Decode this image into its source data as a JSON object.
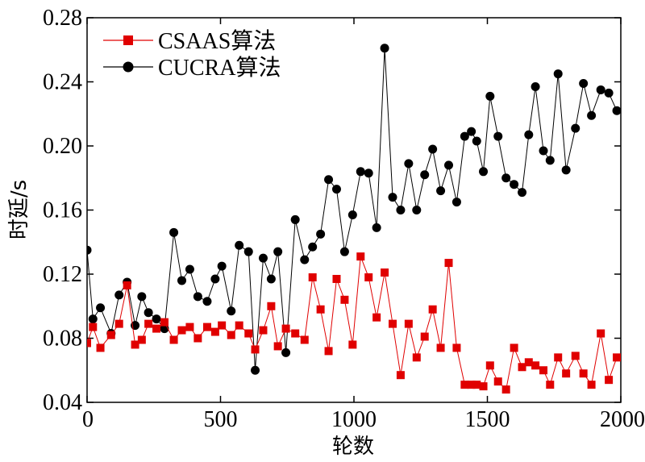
{
  "chart_data": {
    "type": "line",
    "xlabel": "轮数",
    "ylabel": "时延/s",
    "xlim": [
      0,
      2000
    ],
    "ylim": [
      0.04,
      0.28
    ],
    "xticks": [
      0,
      500,
      1000,
      1500,
      2000
    ],
    "xtick_labels": [
      "0",
      "500",
      "1000",
      "1500",
      "2000"
    ],
    "yticks": [
      0.04,
      0.08,
      0.12,
      0.16,
      0.2,
      0.24,
      0.28
    ],
    "ytick_labels": [
      "0.04",
      "0.08",
      "0.12",
      "0.16",
      "0.20",
      "0.24",
      "0.28"
    ],
    "grid": false,
    "legend": "top-left",
    "series": [
      {
        "name": "CSAAS算法",
        "color": "#e00000",
        "marker": "square",
        "x": [
          0,
          22,
          50,
          90,
          120,
          150,
          180,
          205,
          230,
          260,
          290,
          325,
          355,
          385,
          415,
          450,
          480,
          505,
          540,
          570,
          605,
          630,
          660,
          690,
          715,
          745,
          780,
          815,
          845,
          875,
          905,
          935,
          965,
          995,
          1025,
          1055,
          1085,
          1115,
          1145,
          1175,
          1205,
          1235,
          1265,
          1295,
          1325,
          1355,
          1385,
          1415,
          1440,
          1460,
          1485,
          1510,
          1540,
          1570,
          1600,
          1630,
          1655,
          1680,
          1710,
          1735,
          1765,
          1795,
          1830,
          1860,
          1890,
          1925,
          1955,
          1985
        ],
        "y": [
          0.077,
          0.087,
          0.074,
          0.082,
          0.089,
          0.113,
          0.076,
          0.079,
          0.089,
          0.086,
          0.09,
          0.079,
          0.085,
          0.087,
          0.08,
          0.087,
          0.084,
          0.088,
          0.082,
          0.088,
          0.083,
          0.073,
          0.085,
          0.1,
          0.075,
          0.086,
          0.083,
          0.079,
          0.118,
          0.098,
          0.072,
          0.117,
          0.104,
          0.076,
          0.131,
          0.118,
          0.093,
          0.121,
          0.089,
          0.057,
          0.089,
          0.068,
          0.081,
          0.098,
          0.074,
          0.127,
          0.074,
          0.051,
          0.051,
          0.051,
          0.05,
          0.063,
          0.053,
          0.048,
          0.074,
          0.062,
          0.065,
          0.063,
          0.06,
          0.051,
          0.068,
          0.058,
          0.069,
          0.058,
          0.051,
          0.083,
          0.054,
          0.068
        ]
      },
      {
        "name": "CUCRA算法",
        "color": "#000000",
        "marker": "circle",
        "x": [
          0,
          22,
          50,
          90,
          120,
          150,
          180,
          205,
          230,
          260,
          290,
          325,
          355,
          385,
          415,
          450,
          480,
          505,
          540,
          570,
          605,
          630,
          660,
          690,
          715,
          745,
          780,
          815,
          845,
          875,
          905,
          935,
          965,
          995,
          1025,
          1055,
          1085,
          1115,
          1145,
          1175,
          1205,
          1235,
          1265,
          1295,
          1325,
          1355,
          1385,
          1415,
          1440,
          1460,
          1485,
          1510,
          1540,
          1570,
          1600,
          1630,
          1655,
          1680,
          1710,
          1735,
          1765,
          1795,
          1830,
          1860,
          1890,
          1925,
          1955,
          1985
        ],
        "y": [
          0.135,
          0.092,
          0.099,
          0.083,
          0.107,
          0.115,
          0.088,
          0.106,
          0.096,
          0.092,
          0.086,
          0.146,
          0.116,
          0.123,
          0.106,
          0.103,
          0.117,
          0.125,
          0.097,
          0.138,
          0.134,
          0.06,
          0.13,
          0.117,
          0.134,
          0.071,
          0.154,
          0.129,
          0.137,
          0.145,
          0.179,
          0.173,
          0.134,
          0.157,
          0.184,
          0.183,
          0.149,
          0.261,
          0.168,
          0.16,
          0.189,
          0.16,
          0.182,
          0.198,
          0.172,
          0.188,
          0.165,
          0.206,
          0.209,
          0.203,
          0.184,
          0.231,
          0.206,
          0.18,
          0.176,
          0.171,
          0.207,
          0.237,
          0.197,
          0.191,
          0.245,
          0.185,
          0.211,
          0.239,
          0.219,
          0.235,
          0.233,
          0.222
        ]
      }
    ]
  }
}
